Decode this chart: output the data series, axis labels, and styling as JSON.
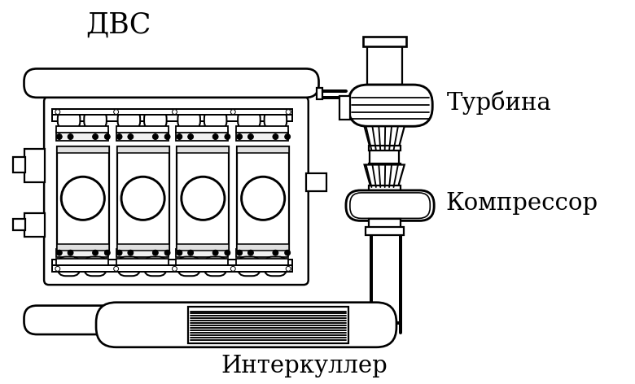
{
  "labels": {
    "dvs": "ДВС",
    "turbina": "Турбина",
    "compressor": "Компрессор",
    "intercooler": "Интеркуллер"
  },
  "bg_color": "#ffffff",
  "lc": "#000000",
  "lw": 1.6,
  "figsize": [
    7.8,
    4.72
  ],
  "dpi": 100
}
